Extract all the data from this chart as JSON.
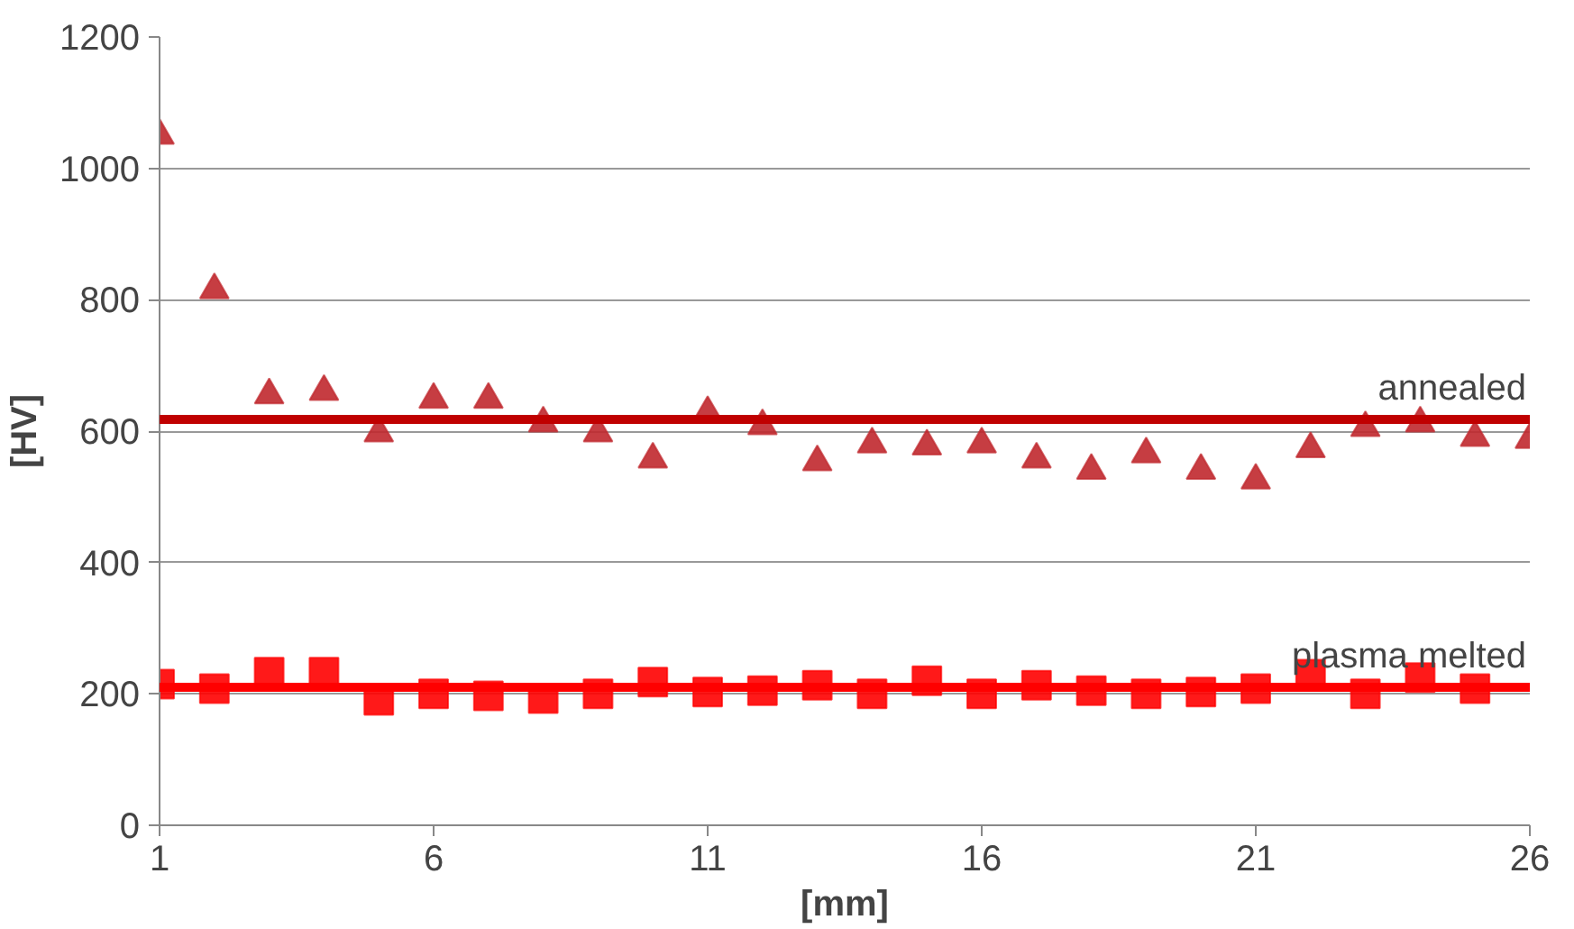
{
  "chart_data": {
    "type": "scatter",
    "xlabel": "[mm]",
    "ylabel": "[HV]",
    "xlim": [
      1,
      26
    ],
    "xticks": [
      1,
      6,
      11,
      16,
      21,
      26
    ],
    "ylim": [
      0,
      1200
    ],
    "yticks": [
      0,
      200,
      400,
      600,
      800,
      1000,
      1200
    ],
    "grid": "y",
    "series": [
      {
        "color": "#c0282d",
        "marker": "triangle",
        "x": [
          1,
          2,
          3,
          4,
          5,
          6,
          7,
          8,
          9,
          10,
          11,
          12,
          13,
          14,
          15,
          16,
          17,
          18,
          19,
          20,
          21,
          22,
          23,
          24,
          25,
          26
        ],
        "values": [
          1050,
          815,
          655,
          660,
          597,
          648,
          648,
          612,
          597,
          557,
          628,
          608,
          553,
          580,
          577,
          580,
          557,
          540,
          565,
          540,
          525,
          573,
          605,
          612,
          590,
          587
        ]
      },
      {
        "color": "#ff0000",
        "marker": "square",
        "x": [
          1,
          2,
          3,
          4,
          5,
          6,
          7,
          8,
          9,
          10,
          11,
          12,
          13,
          14,
          15,
          16,
          17,
          18,
          19,
          20,
          21,
          22,
          23,
          24,
          25
        ],
        "values": [
          215,
          208,
          233,
          233,
          190,
          200,
          197,
          193,
          200,
          218,
          203,
          205,
          213,
          200,
          220,
          200,
          213,
          205,
          200,
          203,
          208,
          230,
          200,
          225,
          208
        ]
      }
    ],
    "ref_lines": [
      {
        "axis": "y",
        "value": 618,
        "label": "annealed",
        "color": "#c00000"
      },
      {
        "axis": "y",
        "value": 210,
        "label": "plasma melted",
        "color": "#ff0000"
      }
    ]
  }
}
